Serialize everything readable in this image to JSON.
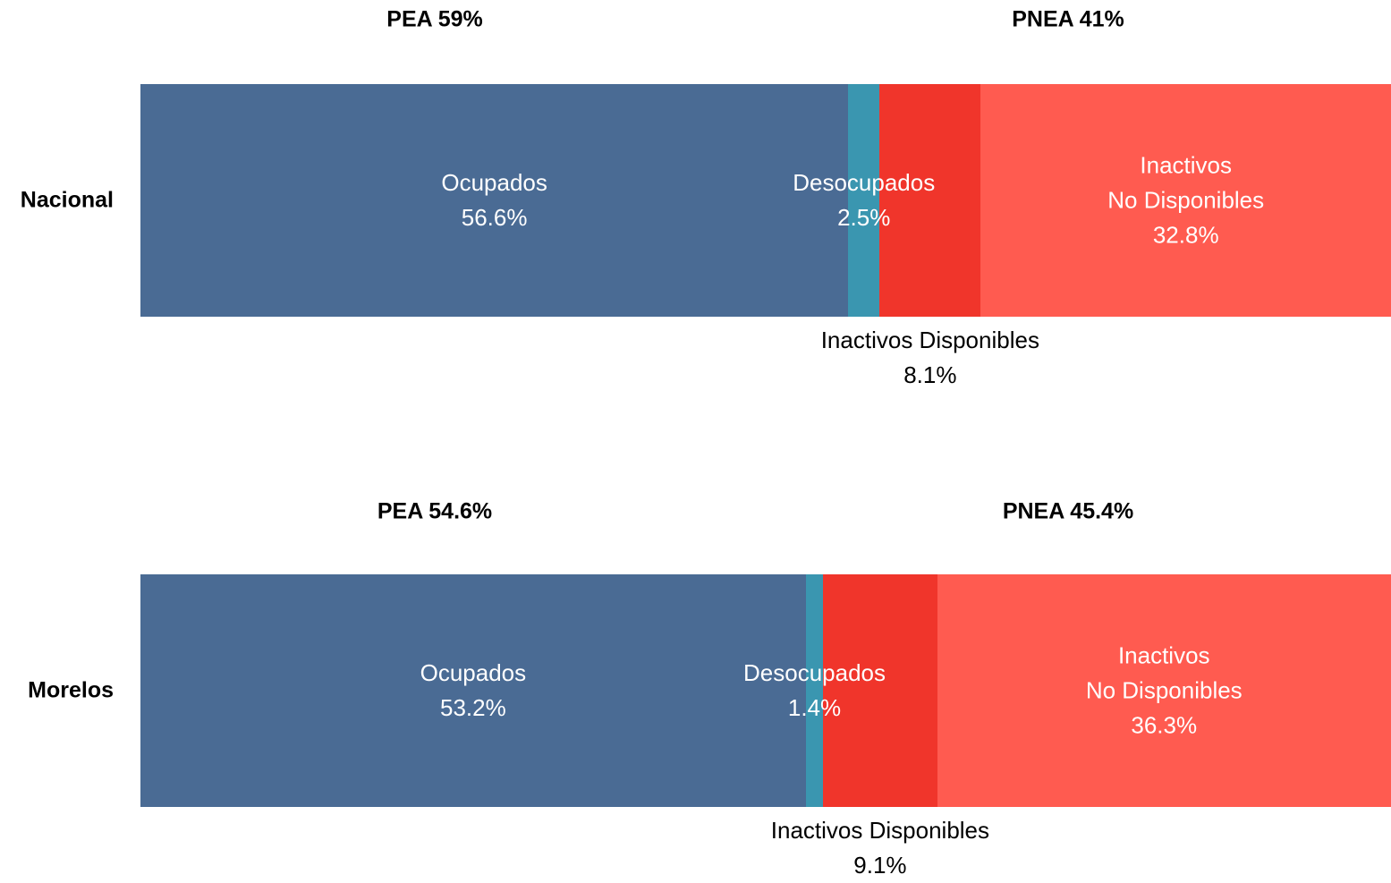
{
  "chart_data": {
    "type": "bar",
    "orientation": "horizontal",
    "stacked": true,
    "categories": [
      "Nacional",
      "Morelos"
    ],
    "xlim": [
      0,
      100
    ],
    "annotations": [
      [
        "PEA 59%",
        "PNEA 41%"
      ],
      [
        "PEA 54.6%",
        "PNEA 45.4%"
      ]
    ],
    "series": [
      {
        "name": "Ocupados",
        "color": "#4a6b94",
        "values": [
          56.6,
          53.2
        ],
        "value_labels": [
          "56.6%",
          "53.2%"
        ]
      },
      {
        "name": "Desocupados",
        "color": "#3a96b0",
        "values": [
          2.5,
          1.4
        ],
        "value_labels": [
          "2.5%",
          "1.4%"
        ]
      },
      {
        "name": "Inactivos Disponibles",
        "color": "#f0352b",
        "values": [
          8.1,
          9.1
        ],
        "value_labels": [
          "8.1%",
          "9.1%"
        ]
      },
      {
        "name": "Inactivos\nNo Disponibles",
        "color": "#ff5b50",
        "values": [
          32.8,
          36.3
        ],
        "value_labels": [
          "32.8%",
          "36.3%"
        ]
      }
    ]
  }
}
